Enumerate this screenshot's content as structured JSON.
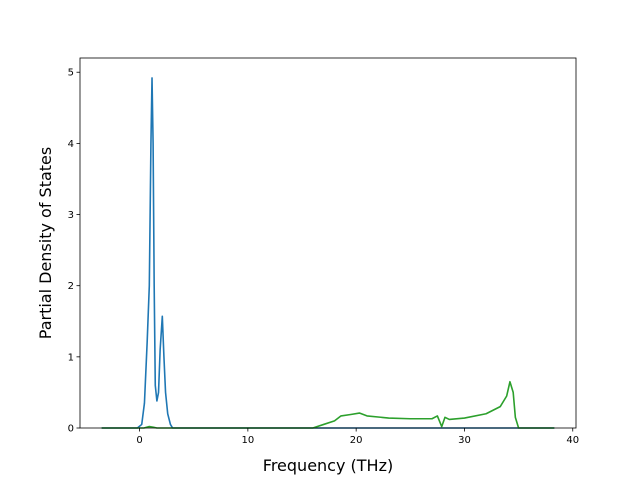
{
  "chart_data": {
    "type": "line",
    "xlabel": "Frequency (THz)",
    "ylabel": "Partial Density of States",
    "xlim": [
      -5.5,
      40.3
    ],
    "ylim": [
      0,
      5.2
    ],
    "x_ticks": [
      0,
      10,
      20,
      30,
      40
    ],
    "y_ticks": [
      0,
      1,
      2,
      3,
      4,
      5
    ],
    "grid": false,
    "series": [
      {
        "color": "#1f77b4",
        "points": [
          [
            -3.5,
            0
          ],
          [
            -0.2,
            0
          ],
          [
            0.2,
            0.05
          ],
          [
            0.45,
            0.35
          ],
          [
            0.7,
            1.2
          ],
          [
            0.9,
            2.0
          ],
          [
            1.05,
            4.0
          ],
          [
            1.15,
            4.92
          ],
          [
            1.25,
            4.0
          ],
          [
            1.35,
            2.0
          ],
          [
            1.45,
            0.6
          ],
          [
            1.6,
            0.38
          ],
          [
            1.75,
            0.5
          ],
          [
            1.9,
            1.1
          ],
          [
            2.1,
            1.57
          ],
          [
            2.25,
            1.0
          ],
          [
            2.4,
            0.5
          ],
          [
            2.6,
            0.2
          ],
          [
            2.85,
            0.05
          ],
          [
            3.05,
            0
          ],
          [
            38.3,
            0
          ]
        ]
      },
      {
        "color": "#2ca02c",
        "points": [
          [
            -3.5,
            0
          ],
          [
            0.4,
            0
          ],
          [
            0.9,
            0.02
          ],
          [
            1.3,
            0.01
          ],
          [
            1.6,
            0
          ],
          [
            16.0,
            0
          ],
          [
            17.0,
            0.05
          ],
          [
            18.0,
            0.1
          ],
          [
            18.6,
            0.17
          ],
          [
            19.5,
            0.19
          ],
          [
            20.3,
            0.21
          ],
          [
            21.0,
            0.17
          ],
          [
            23.0,
            0.14
          ],
          [
            25.0,
            0.13
          ],
          [
            27.0,
            0.13
          ],
          [
            27.5,
            0.17
          ],
          [
            27.9,
            0.02
          ],
          [
            28.2,
            0.15
          ],
          [
            28.6,
            0.12
          ],
          [
            30.0,
            0.14
          ],
          [
            32.0,
            0.2
          ],
          [
            33.3,
            0.3
          ],
          [
            33.9,
            0.45
          ],
          [
            34.2,
            0.65
          ],
          [
            34.5,
            0.5
          ],
          [
            34.7,
            0.15
          ],
          [
            35.0,
            0
          ],
          [
            38.3,
            0
          ]
        ]
      }
    ]
  }
}
